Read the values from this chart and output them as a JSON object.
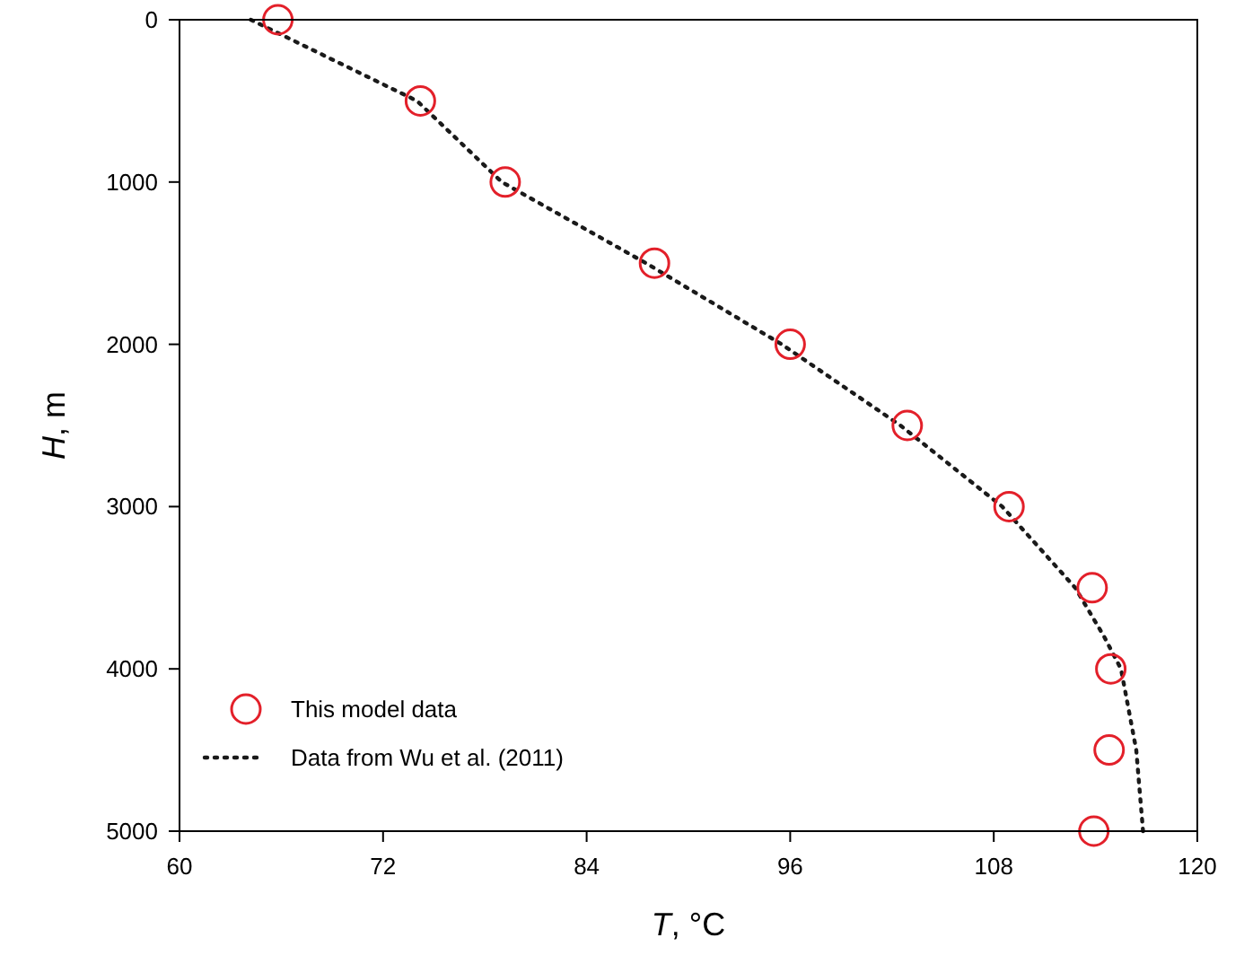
{
  "chart_data": {
    "type": "scatter",
    "xlabel": "T, °C",
    "ylabel": "H, m",
    "xlim": [
      60,
      120
    ],
    "xticks": [
      60,
      72,
      84,
      96,
      108,
      120
    ],
    "ylim": [
      5000,
      0
    ],
    "yticks": [
      0,
      1000,
      2000,
      3000,
      4000,
      5000
    ],
    "grid": false,
    "legend": "bottom left",
    "series": [
      {
        "name": "This model data",
        "marker": "circle",
        "color": "#e3202a",
        "x": [
          65.8,
          74.2,
          79.2,
          88.0,
          96.0,
          102.9,
          108.9,
          113.8,
          114.9,
          114.8,
          113.9
        ],
        "values": [
          0,
          500,
          1000,
          1500,
          2000,
          2500,
          3000,
          3500,
          4000,
          4500,
          5000
        ]
      },
      {
        "name": "Data from Wu et al. (2011)",
        "type": "line",
        "marker": "none",
        "line_style": "dotted",
        "color": "#1a1a1a",
        "x": [
          64.2,
          74.0,
          79.0,
          87.5,
          95.5,
          102.5,
          108.5,
          112.8,
          114.5,
          115.5,
          116.4,
          116.8
        ],
        "values": [
          0,
          500,
          1000,
          1500,
          2000,
          2500,
          3000,
          3500,
          3800,
          4000,
          4500,
          5000
        ]
      }
    ]
  }
}
